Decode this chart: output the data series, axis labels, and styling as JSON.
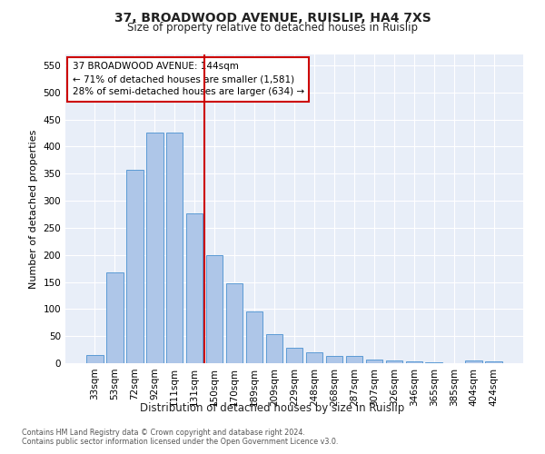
{
  "title1": "37, BROADWOOD AVENUE, RUISLIP, HA4 7XS",
  "title2": "Size of property relative to detached houses in Ruislip",
  "xlabel": "Distribution of detached houses by size in Ruislip",
  "ylabel": "Number of detached properties",
  "categories": [
    "33sqm",
    "53sqm",
    "72sqm",
    "92sqm",
    "111sqm",
    "131sqm",
    "150sqm",
    "170sqm",
    "189sqm",
    "209sqm",
    "229sqm",
    "248sqm",
    "268sqm",
    "287sqm",
    "307sqm",
    "326sqm",
    "346sqm",
    "365sqm",
    "385sqm",
    "404sqm",
    "424sqm"
  ],
  "values": [
    15,
    168,
    357,
    425,
    425,
    277,
    200,
    148,
    95,
    54,
    28,
    20,
    13,
    13,
    7,
    5,
    3,
    2,
    0,
    5,
    3
  ],
  "bar_color": "#aec6e8",
  "bar_edge_color": "#5b9bd5",
  "vline_x": 5.5,
  "ylim": [
    0,
    570
  ],
  "yticks": [
    0,
    50,
    100,
    150,
    200,
    250,
    300,
    350,
    400,
    450,
    500,
    550
  ],
  "annotation_text": "37 BROADWOOD AVENUE: 144sqm\n← 71% of detached houses are smaller (1,581)\n28% of semi-detached houses are larger (634) →",
  "footnote1": "Contains HM Land Registry data © Crown copyright and database right 2024.",
  "footnote2": "Contains public sector information licensed under the Open Government Licence v3.0.",
  "vline_color": "#cc0000",
  "annotation_box_edge_color": "#cc0000",
  "annotation_box_face_color": "#ffffff",
  "background_color": "#e8eef8",
  "grid_color": "#ffffff",
  "title1_fontsize": 10,
  "title2_fontsize": 8.5,
  "ylabel_fontsize": 8,
  "xlabel_fontsize": 8.5,
  "tick_fontsize": 7.5,
  "annotation_fontsize": 7.5,
  "footnote_fontsize": 5.8
}
